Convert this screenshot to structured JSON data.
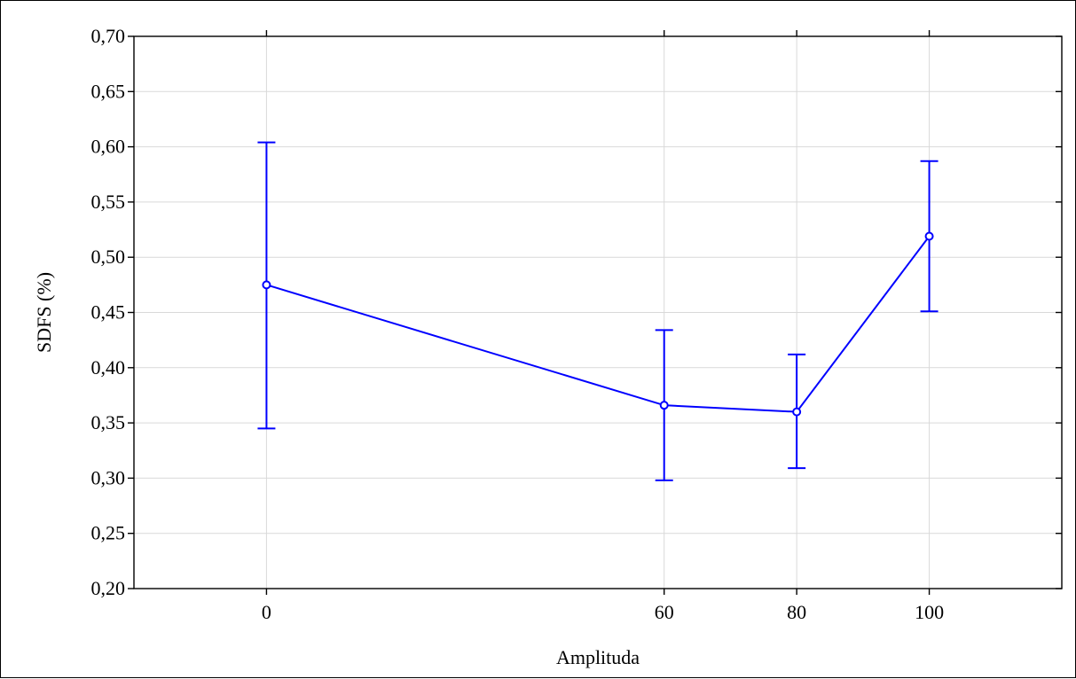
{
  "chart_data": {
    "type": "line",
    "title": "",
    "xlabel": "Amplituda",
    "ylabel": "SDFS (%)",
    "categories": [
      "0",
      "60",
      "80",
      "100"
    ],
    "series": [
      {
        "values": [
          0.475,
          0.366,
          0.36,
          0.519
        ],
        "error_low": [
          0.345,
          0.298,
          0.309,
          0.451
        ],
        "error_high": [
          0.604,
          0.434,
          0.412,
          0.587
        ]
      }
    ],
    "ylim": [
      0.2,
      0.7
    ],
    "yticks": [
      "0,20",
      "0,25",
      "0,30",
      "0,35",
      "0,40",
      "0,45",
      "0,50",
      "0,55",
      "0,60",
      "0,65",
      "0,70"
    ],
    "grid": true,
    "legend": "none",
    "colors": {
      "series": "#0000ff",
      "grid": "#d9d9d9",
      "axis": "#000000"
    }
  }
}
